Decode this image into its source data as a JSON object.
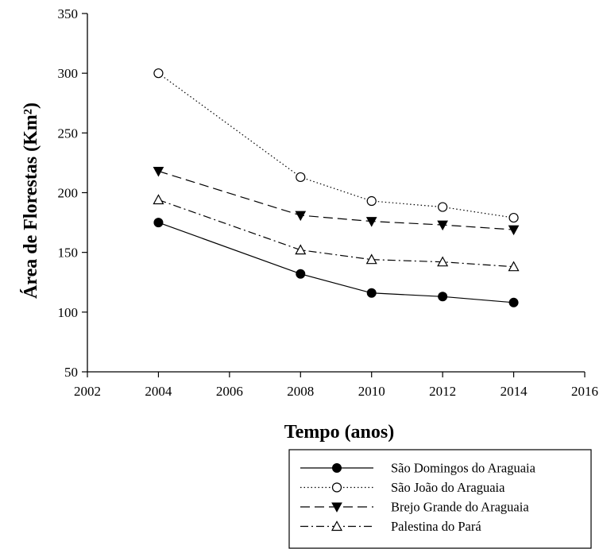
{
  "chart_data": {
    "type": "line",
    "title": "",
    "xlabel": "Tempo (anos)",
    "ylabel": "Área de Florestas (Km²)",
    "xlim": [
      2002,
      2016
    ],
    "ylim": [
      50,
      350
    ],
    "xticks": [
      "2002",
      "2004",
      "2006",
      "2008",
      "2010",
      "2012",
      "2014",
      "2016"
    ],
    "yticks": [
      "50",
      "100",
      "150",
      "200",
      "250",
      "300",
      "350"
    ],
    "x": [
      2004,
      2008,
      2010,
      2012,
      2014
    ],
    "grid": false,
    "legend_position": "bottom-right, below plot",
    "series": [
      {
        "name": "São Domingos do Araguaia",
        "values": [
          175,
          132,
          116,
          113,
          108
        ],
        "marker": "filled-circle",
        "line_style": "solid",
        "color": "#000000"
      },
      {
        "name": "São João do Araguaia",
        "values": [
          300,
          213,
          193,
          188,
          179
        ],
        "marker": "open-circle",
        "line_style": "dotted",
        "color": "#000000"
      },
      {
        "name": "Brejo Grande do Araguaia",
        "values": [
          218,
          181,
          176,
          173,
          169
        ],
        "marker": "filled-triangle-down",
        "line_style": "dashed",
        "color": "#000000"
      },
      {
        "name": "Palestina do Pará",
        "values": [
          194,
          152,
          144,
          142,
          138
        ],
        "marker": "open-triangle-up",
        "line_style": "dash-dot",
        "color": "#000000"
      }
    ]
  }
}
